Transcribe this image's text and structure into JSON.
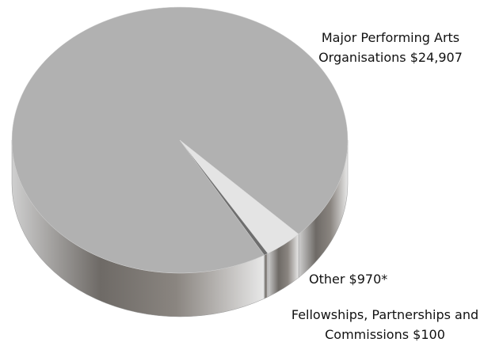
{
  "chart_data": {
    "type": "pie",
    "categories": [
      "Major Performing Arts Organisations",
      "Other",
      "Fellowships, Partnerships and Commissions"
    ],
    "values": [
      24907,
      970,
      100
    ],
    "value_labels": [
      "$24,907",
      "$970*",
      "$100"
    ],
    "colors": [
      "#b1b1b1",
      "#e4e4e4",
      "#6e6e6e"
    ]
  }
}
